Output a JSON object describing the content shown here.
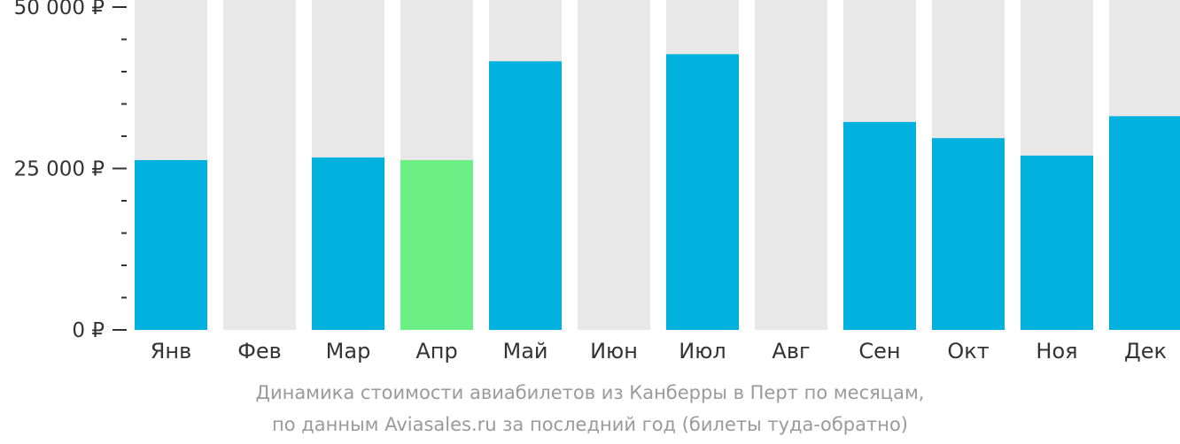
{
  "chart_data": {
    "type": "bar",
    "categories": [
      "Янв",
      "Фев",
      "Мар",
      "Апр",
      "Май",
      "Июн",
      "Июл",
      "Авг",
      "Сен",
      "Окт",
      "Ноя",
      "Дек"
    ],
    "values": [
      26300,
      null,
      26700,
      26300,
      41600,
      null,
      42700,
      null,
      32200,
      29700,
      27000,
      33100
    ],
    "highlight_index": 3,
    "ylim": [
      0,
      50000
    ],
    "y_ticks": [
      {
        "value": 0,
        "label": "0 ₽"
      },
      {
        "value": 25000,
        "label": "25 000 ₽"
      },
      {
        "value": 50000,
        "label": "50 000 ₽"
      }
    ],
    "minor_tick_step": 5000,
    "colors": {
      "bar": "#00b0dd",
      "highlight": "#6cef85",
      "background_bar": "#e8e8e8",
      "axis_text": "#333333"
    },
    "caption": [
      "Динамика стоимости авиабилетов из Канберры в Перт по месяцам,",
      "по данным Aviasales.ru за последний год (билеты туда-обратно)"
    ]
  }
}
